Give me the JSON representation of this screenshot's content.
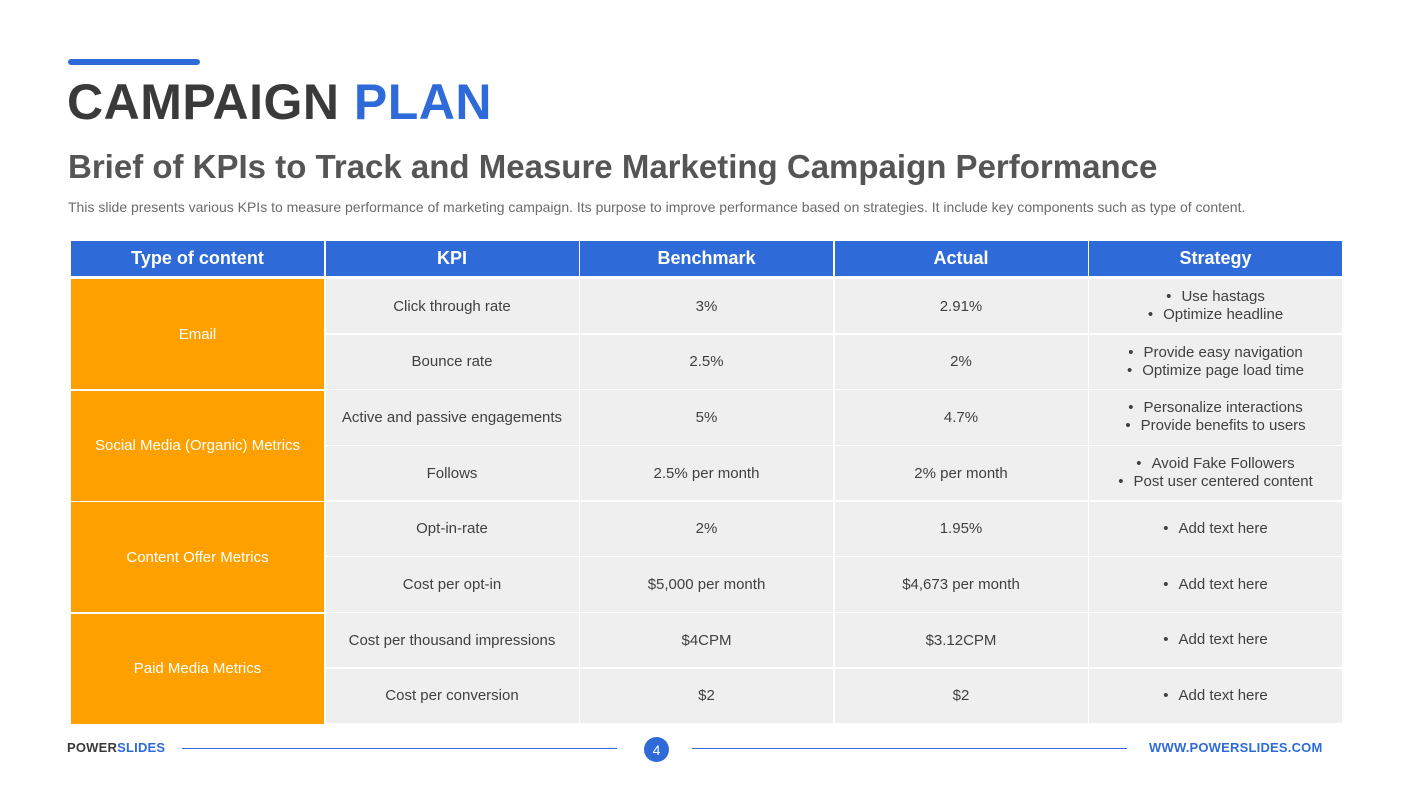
{
  "title": {
    "part1": "CAMPAIGN",
    "part2": "PLAN"
  },
  "subtitle": "Brief of KPIs to Track and Measure Marketing Campaign Performance",
  "description": "This slide presents various KPIs to measure performance of marketing campaign. Its purpose to improve performance based on strategies. It include key components such as type of content.",
  "table": {
    "headers": [
      "Type of content",
      "KPI",
      "Benchmark",
      "Actual",
      "Strategy"
    ],
    "groups": [
      {
        "label": "Email",
        "rows": [
          {
            "kpi": "Click through rate",
            "benchmark": "3%",
            "actual": "2.91%",
            "strategy": [
              "Use hastags",
              "Optimize headline"
            ]
          },
          {
            "kpi": "Bounce rate",
            "benchmark": "2.5%",
            "actual": "2%",
            "strategy": [
              "Provide easy navigation",
              "Optimize page load time"
            ]
          }
        ]
      },
      {
        "label": "Social Media (Organic) Metrics",
        "rows": [
          {
            "kpi": "Active and passive engagements",
            "benchmark": "5%",
            "actual": "4.7%",
            "strategy": [
              "Personalize interactions",
              "Provide benefits to users"
            ]
          },
          {
            "kpi": "Follows",
            "benchmark": "2.5% per month",
            "actual": "2% per month",
            "strategy": [
              "Avoid Fake Followers",
              "Post user centered content"
            ]
          }
        ]
      },
      {
        "label": "Content Offer Metrics",
        "rows": [
          {
            "kpi": "Opt-in-rate",
            "benchmark": "2%",
            "actual": "1.95%",
            "strategy": [
              "Add text here"
            ]
          },
          {
            "kpi": "Cost per opt-in",
            "benchmark": "$5,000 per month",
            "actual": "$4,673 per month",
            "strategy": [
              "Add text here"
            ]
          }
        ]
      },
      {
        "label": "Paid Media Metrics",
        "rows": [
          {
            "kpi": "Cost per thousand impressions",
            "benchmark": "$4CPM",
            "actual": "$3.12CPM",
            "strategy": [
              "Add text here"
            ]
          },
          {
            "kpi": "Cost per conversion",
            "benchmark": "$2",
            "actual": "$2",
            "strategy": [
              "Add text here"
            ]
          }
        ]
      }
    ]
  },
  "footer": {
    "brand_part1": "POWER",
    "brand_part2": "SLIDES",
    "page_number": "4",
    "website": "WWW.POWERSLIDES.COM"
  },
  "colors": {
    "accent": "#2f6bd8",
    "group": "#fea100",
    "cell": "#efefef",
    "title_dark": "#3a3a3a"
  }
}
